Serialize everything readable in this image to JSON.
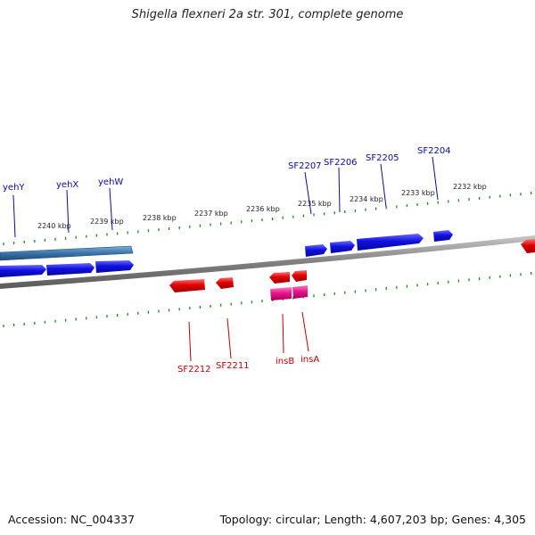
{
  "title": "Shigella flexneri 2a str. 301, complete genome",
  "accession": "Accession: NC_004337",
  "summary": "Topology: circular; Length: 4,607,203 bp; Genes: 4,305",
  "colors": {
    "forward_gene": "#1010e0",
    "forward_gene_dark": "#3b72a8",
    "reverse_gene": "#e00000",
    "reverse_gene_pink": "#e8148c",
    "tick": "#1a8a1a",
    "backbone": "#8a8a8a",
    "label_forward": "#0a0aa0",
    "label_reverse": "#c00000"
  },
  "scale_labels": [
    "2240 kbp",
    "2239 kbp",
    "2238 kbp",
    "2237 kbp",
    "2236 kbp",
    "2235 kbp",
    "2234 kbp",
    "2233 kbp",
    "2232 kbp"
  ],
  "forward_gene_labels": [
    "yehY",
    "yehX",
    "yehW",
    "SF2207",
    "SF2206",
    "SF2205",
    "SF2204"
  ],
  "reverse_gene_labels": [
    "SF2212",
    "SF2211",
    "insB",
    "insA"
  ]
}
